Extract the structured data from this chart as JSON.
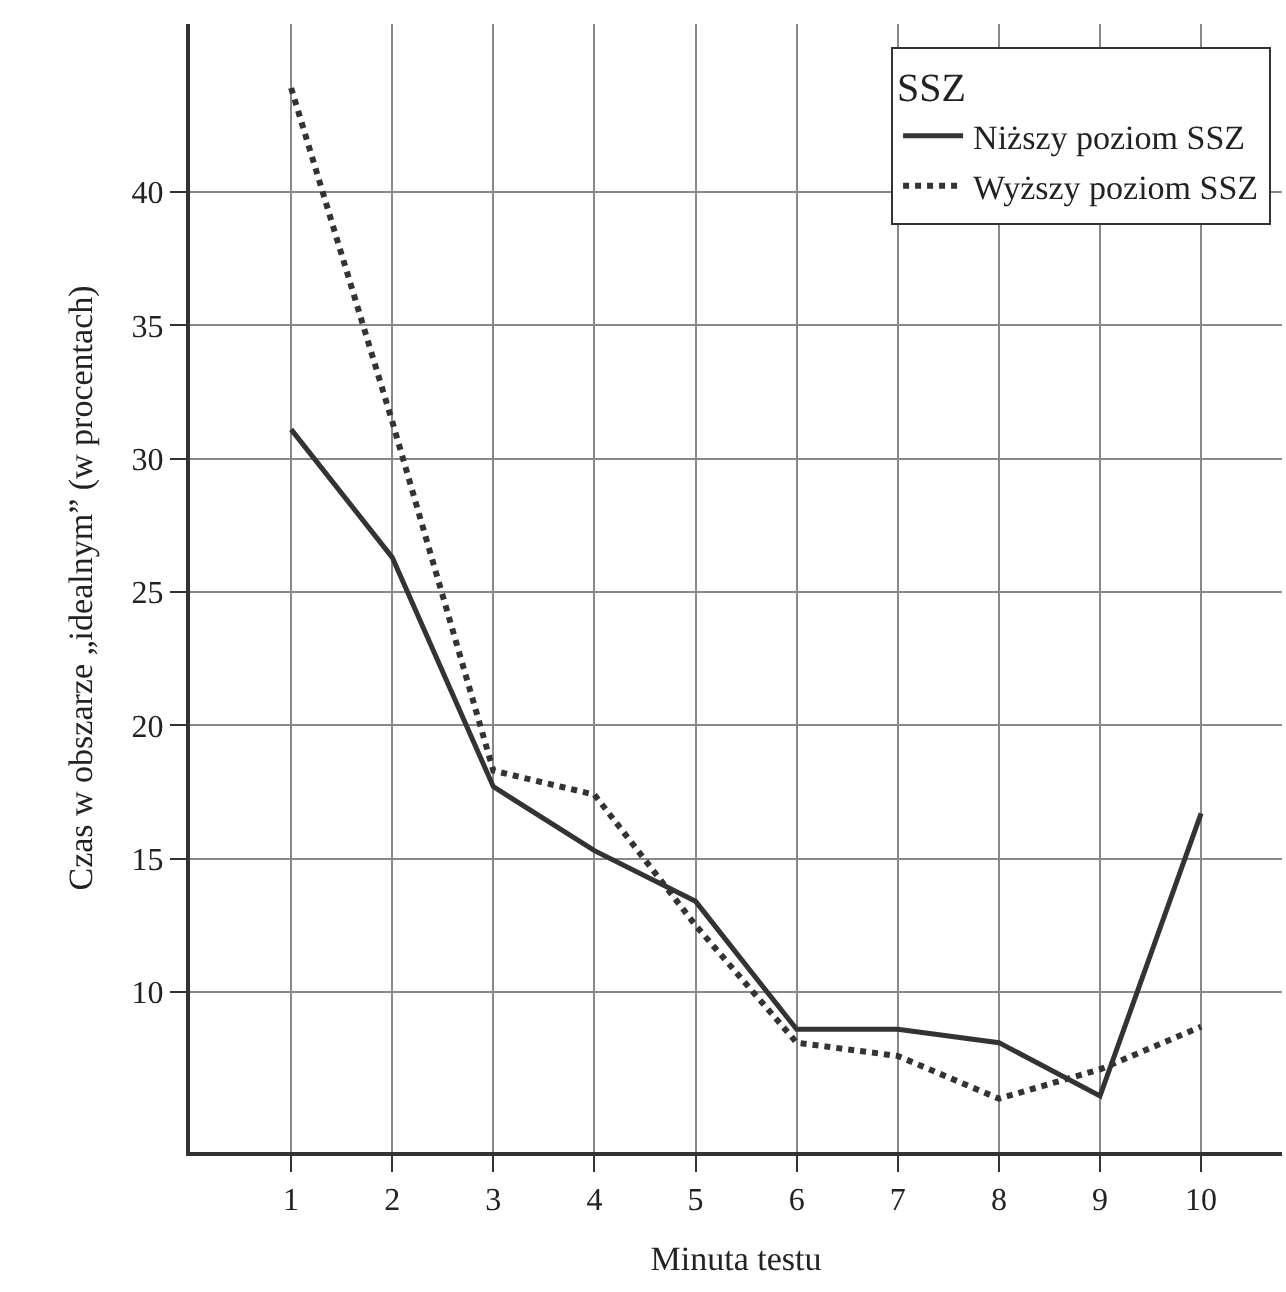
{
  "chart_data": {
    "type": "line",
    "xlabel": "Minuta testu",
    "ylabel": "Czas w obszarze „idealnym” (w procentach)",
    "legend_title": "SSZ",
    "x": [
      1,
      2,
      3,
      4,
      5,
      6,
      7,
      8,
      9,
      10
    ],
    "series": [
      {
        "name": "Niższy poziom SSZ",
        "color": "#333333",
        "line_style": "solid",
        "values": [
          31.1,
          26.3,
          17.7,
          15.3,
          13.4,
          8.6,
          8.6,
          8.1,
          6.1,
          16.7
        ]
      },
      {
        "name": "Wyższy poziom SSZ",
        "color": "#333333",
        "line_style": "dotted",
        "values": [
          43.9,
          31.4,
          18.3,
          17.4,
          12.5,
          8.1,
          7.6,
          6.0,
          7.1,
          8.7
        ]
      }
    ],
    "xlim": [
      0,
      10.8
    ],
    "xticks": [
      1,
      2,
      3,
      4,
      5,
      6,
      7,
      8,
      9,
      10
    ],
    "ylim": [
      4.0,
      46.3
    ],
    "yticks": [
      10,
      15,
      20,
      25,
      30,
      35,
      40
    ],
    "grid": true,
    "legend": "top right",
    "marker": "none"
  }
}
